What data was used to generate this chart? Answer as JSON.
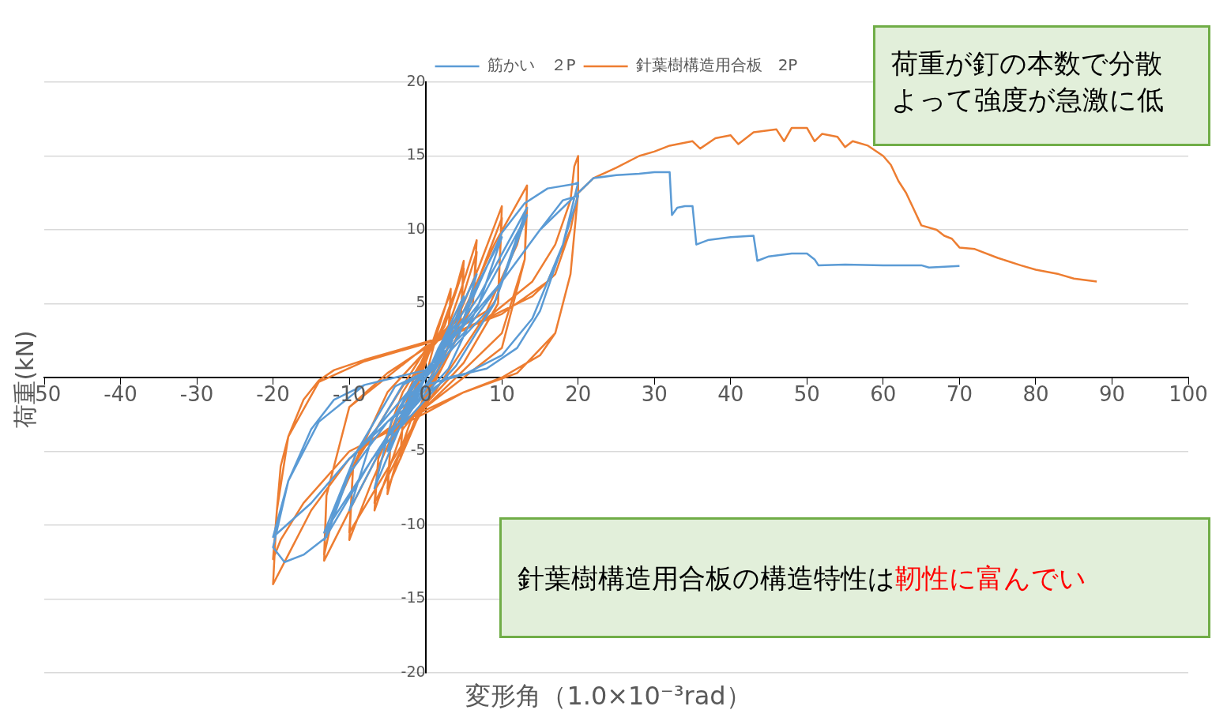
{
  "chart_data": {
    "type": "line",
    "xlabel": "変形角（1.0×10⁻³rad）",
    "ylabel": "荷重(kN)",
    "xlim": [
      -50,
      100
    ],
    "xticks": [
      -50,
      -40,
      -30,
      -20,
      -10,
      0,
      10,
      20,
      30,
      40,
      50,
      60,
      70,
      80,
      90,
      100
    ],
    "ylim": [
      -20,
      20
    ],
    "yticks": [
      -20,
      -15,
      -10,
      -5,
      0,
      5,
      10,
      15,
      20
    ],
    "grid": "y",
    "legend": "top",
    "marker": "none",
    "annotations": [
      "荷重が釘の本数で分散よって強度が急激に低",
      "針葉樹構造用合板の構造特性は",
      "靭性に富んでい"
    ],
    "series": [
      {
        "name": "筋かい　２P",
        "color": "#5b9bd5",
        "x": [
          0,
          1.7,
          3.3,
          2,
          0,
          -1.7,
          -3.3,
          -2,
          0,
          1.7,
          3.3,
          2,
          0,
          -3.3,
          -2,
          0,
          2.5,
          5,
          3.5,
          1,
          -2.5,
          -5,
          -3.5,
          -1,
          0,
          3.5,
          6.7,
          4.5,
          1.5,
          -3.5,
          -6.7,
          -4.5,
          -1.5,
          0,
          5,
          10,
          7,
          3,
          -5,
          -10,
          -7,
          -3,
          0,
          7,
          13.3,
          9,
          4,
          -7,
          -13.3,
          -9,
          -4,
          0,
          7,
          13.3,
          9,
          0,
          -13.3,
          -9,
          0,
          5,
          10,
          13,
          16,
          19.5,
          20,
          18,
          15,
          12,
          8,
          3,
          -5,
          -10,
          -13,
          -16,
          -18.5,
          -20,
          -18,
          -15,
          -12,
          -8,
          -4,
          0,
          5,
          10,
          15,
          18,
          20,
          18,
          14,
          10,
          5,
          0,
          -10,
          -15,
          -20,
          -18,
          -14,
          -8,
          0,
          10,
          15,
          20,
          22,
          25,
          28,
          30,
          32,
          32.3,
          33,
          34,
          35,
          35.5,
          37,
          40,
          43,
          43.5,
          45,
          48,
          50,
          51,
          51.5,
          55,
          60,
          65,
          66,
          70
        ],
        "values": [
          0,
          2,
          3.5,
          1.5,
          0,
          -1.8,
          -3.2,
          -1.3,
          0,
          1.8,
          3.3,
          1.3,
          0,
          -3,
          -1.2,
          0,
          2.8,
          5.5,
          2.5,
          0.3,
          -2.5,
          -5,
          -2.2,
          -0.2,
          0,
          3.5,
          7,
          3,
          0.4,
          -3.5,
          -7.5,
          -3,
          -0.3,
          0.2,
          4.5,
          9.5,
          5,
          0.6,
          -4,
          -9,
          -4,
          -0.5,
          0.3,
          5.5,
          11.5,
          5,
          0.8,
          -5.5,
          -11,
          -5,
          -0.6,
          0.4,
          5,
          11,
          5,
          0,
          -10.5,
          -5,
          0.4,
          4,
          9.8,
          11.8,
          12.8,
          13.1,
          13.2,
          9,
          4.5,
          2,
          0.6,
          0,
          -3,
          -6.5,
          -10.8,
          -12,
          -12.5,
          -11.5,
          -7,
          -3.5,
          -1.5,
          -0.5,
          0,
          0.5,
          3,
          6.5,
          10,
          12,
          12.3,
          9,
          4,
          1.5,
          0.2,
          -0.5,
          -5.5,
          -8.5,
          -10.8,
          -7,
          -3,
          -0.5,
          0.5,
          6.5,
          10,
          12.5,
          13.5,
          13.7,
          13.8,
          13.9,
          13.9,
          11,
          11.5,
          11.6,
          11.6,
          9,
          9.3,
          9.5,
          9.6,
          7.9,
          8.2,
          8.4,
          8.4,
          8,
          7.6,
          7.65,
          7.6,
          7.6,
          7.45,
          7.55
        ]
      },
      {
        "name": "針葉樹構造用合板　2P",
        "color": "#ed7d31",
        "x": [
          0,
          1.5,
          3.3,
          3,
          1,
          0,
          -1.5,
          -3.3,
          -3,
          -1,
          0,
          1.5,
          3.3,
          3,
          0,
          -3.3,
          -3,
          0,
          2,
          4,
          5,
          4.6,
          2,
          0,
          -2,
          -4,
          -5,
          -4.6,
          -2,
          0,
          2.5,
          5,
          4.6,
          0,
          -5,
          -4.6,
          0,
          3,
          5,
          6.7,
          6.2,
          3,
          0,
          -3,
          -5,
          -6.7,
          -6.2,
          -3,
          0,
          4,
          6.7,
          6.2,
          0,
          -6.7,
          -6.2,
          0,
          4,
          7,
          10,
          9.5,
          5,
          0,
          -4,
          -7,
          -10,
          -9.5,
          -5,
          0,
          5,
          10,
          9.5,
          0,
          -10,
          -9.5,
          0,
          5,
          9,
          13.3,
          13,
          10,
          5,
          0,
          -5,
          -9,
          -13.3,
          -13,
          -10,
          -5,
          0,
          8,
          12,
          13.3,
          13,
          10,
          0,
          -8,
          -12,
          -13.3,
          -13,
          -10,
          0,
          8,
          14,
          17,
          19,
          19.5,
          20,
          20,
          19,
          17,
          15,
          10,
          5,
          0,
          -5,
          -10,
          -15,
          -18,
          -20,
          -19.5,
          -19,
          -18,
          -16,
          -14,
          -12,
          -8,
          -4,
          0,
          5,
          10,
          14,
          17,
          19,
          20,
          19,
          17,
          12,
          5,
          0,
          -10,
          -16,
          -19,
          -20,
          -19.5,
          -18,
          -14,
          -8,
          0,
          10,
          16,
          19,
          20,
          22,
          25,
          28,
          30,
          32,
          35,
          36,
          38,
          40,
          41,
          43,
          46,
          47,
          48,
          50,
          51,
          52,
          54,
          55,
          56,
          58,
          60,
          61,
          62,
          63,
          64,
          65,
          67,
          68,
          69,
          70,
          72,
          75,
          78,
          80,
          83,
          85,
          88
        ],
        "values": [
          0,
          3,
          6,
          3,
          0.5,
          -1,
          -3,
          -5.5,
          -3,
          -0.5,
          1,
          3.3,
          5.8,
          3,
          -1.2,
          -5.3,
          -3,
          1.2,
          3.2,
          6,
          7.9,
          4,
          1,
          -1.3,
          -3,
          -6,
          -7.9,
          -4.5,
          -1,
          1.3,
          3.5,
          7.4,
          4,
          -1.5,
          -7.5,
          -4.5,
          1.5,
          3.5,
          6.5,
          9.3,
          5,
          1.5,
          -1.5,
          -3.5,
          -6.5,
          -9,
          -5.5,
          -1,
          1.5,
          4,
          8.5,
          5,
          -1.6,
          -8.5,
          -5.5,
          1.7,
          3.8,
          7.5,
          11.6,
          5,
          1,
          -1.8,
          -3.5,
          -7,
          -11,
          -6,
          -1,
          1.8,
          4,
          10.8,
          5.5,
          -1.9,
          -10.5,
          -6,
          1.9,
          4.5,
          9,
          13,
          8,
          3,
          0.5,
          -2,
          -4,
          -8,
          -12.4,
          -8,
          -2,
          0.3,
          2,
          4.5,
          9,
          11.5,
          8,
          2,
          -2,
          -4.5,
          -9,
          -12,
          -8,
          -2,
          2.1,
          4,
          6.5,
          9,
          12,
          14.3,
          15,
          12.5,
          7,
          3,
          1.5,
          0,
          -1,
          -2.2,
          -3.5,
          -5.5,
          -9,
          -12,
          -14,
          -9,
          -6,
          -4,
          -1.5,
          -0.2,
          0.5,
          1.2,
          1.8,
          2.4,
          3.2,
          4.5,
          5.5,
          7,
          10,
          12.5,
          7,
          3,
          0.3,
          -1,
          -2.4,
          -5,
          -8.5,
          -11,
          -12.3,
          -9,
          -4,
          -0.3,
          1.1,
          2.3,
          4.3,
          6.5,
          10,
          12.5,
          13.5,
          14.2,
          15,
          15.3,
          15.7,
          16,
          15.5,
          16.2,
          16.4,
          15.8,
          16.6,
          16.8,
          16,
          16.9,
          16.9,
          16,
          16.5,
          16.3,
          15.6,
          16,
          15.7,
          15,
          14.4,
          13.3,
          12.5,
          11.4,
          10.3,
          10,
          9.6,
          9.4,
          8.8,
          8.7,
          8.1,
          7.6,
          7.3,
          7,
          6.7,
          6.5
        ]
      }
    ]
  }
}
